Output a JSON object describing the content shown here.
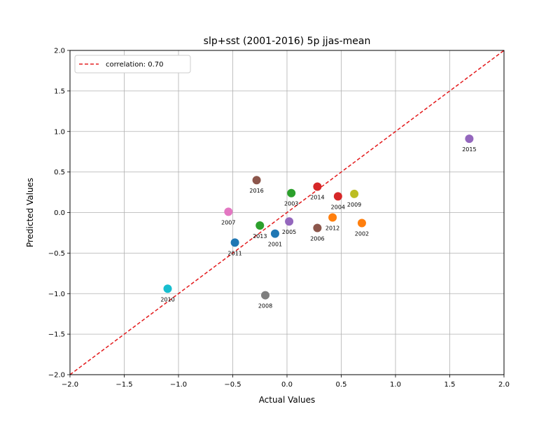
{
  "chart_data": {
    "type": "scatter",
    "title": "slp+sst (2001-2016) 5p jjas-mean",
    "xlabel": "Actual Values",
    "ylabel": "Predicted Values",
    "xlim": [
      -2.0,
      2.0
    ],
    "ylim": [
      -2.0,
      2.0
    ],
    "x_ticks": [
      "−2.0",
      "−1.5",
      "−1.0",
      "−0.5",
      "0.0",
      "0.5",
      "1.0",
      "1.5",
      "2.0"
    ],
    "y_ticks": [
      "−2.0",
      "−1.5",
      "−1.0",
      "−0.5",
      "0.0",
      "0.5",
      "1.0",
      "1.5",
      "2.0"
    ],
    "grid": true,
    "legend": {
      "placement": "top-left",
      "entries": [
        "correlation: 0.70"
      ]
    },
    "reference_line": {
      "style": "dashed",
      "color": "#e31a1c",
      "from": [
        -2.0,
        -2.0
      ],
      "to": [
        2.0,
        2.0
      ],
      "label": "correlation: 0.70"
    },
    "points": [
      {
        "label": "2001",
        "x": -0.11,
        "y": -0.26,
        "color": "#1f77b4"
      },
      {
        "label": "2002",
        "x": 0.69,
        "y": -0.13,
        "color": "#ff7f0e"
      },
      {
        "label": "2003",
        "x": 0.04,
        "y": 0.24,
        "color": "#2ca02c"
      },
      {
        "label": "2004",
        "x": 0.47,
        "y": 0.2,
        "color": "#d62728"
      },
      {
        "label": "2005",
        "x": 0.02,
        "y": -0.11,
        "color": "#9467bd"
      },
      {
        "label": "2006",
        "x": 0.28,
        "y": -0.19,
        "color": "#8c564b"
      },
      {
        "label": "2007",
        "x": -0.54,
        "y": 0.01,
        "color": "#e377c2"
      },
      {
        "label": "2008",
        "x": -0.2,
        "y": -1.02,
        "color": "#7f7f7f"
      },
      {
        "label": "2009",
        "x": 0.62,
        "y": 0.23,
        "color": "#bcbd22"
      },
      {
        "label": "2010",
        "x": -1.1,
        "y": -0.94,
        "color": "#17becf"
      },
      {
        "label": "2011",
        "x": -0.48,
        "y": -0.37,
        "color": "#1f77b4"
      },
      {
        "label": "2012",
        "x": 0.42,
        "y": -0.06,
        "color": "#ff7f0e"
      },
      {
        "label": "2013",
        "x": -0.25,
        "y": -0.16,
        "color": "#2ca02c"
      },
      {
        "label": "2014",
        "x": 0.28,
        "y": 0.32,
        "color": "#d62728"
      },
      {
        "label": "2015",
        "x": 1.68,
        "y": 0.91,
        "color": "#9467bd"
      },
      {
        "label": "2016",
        "x": -0.28,
        "y": 0.4,
        "color": "#8c564b"
      }
    ]
  }
}
